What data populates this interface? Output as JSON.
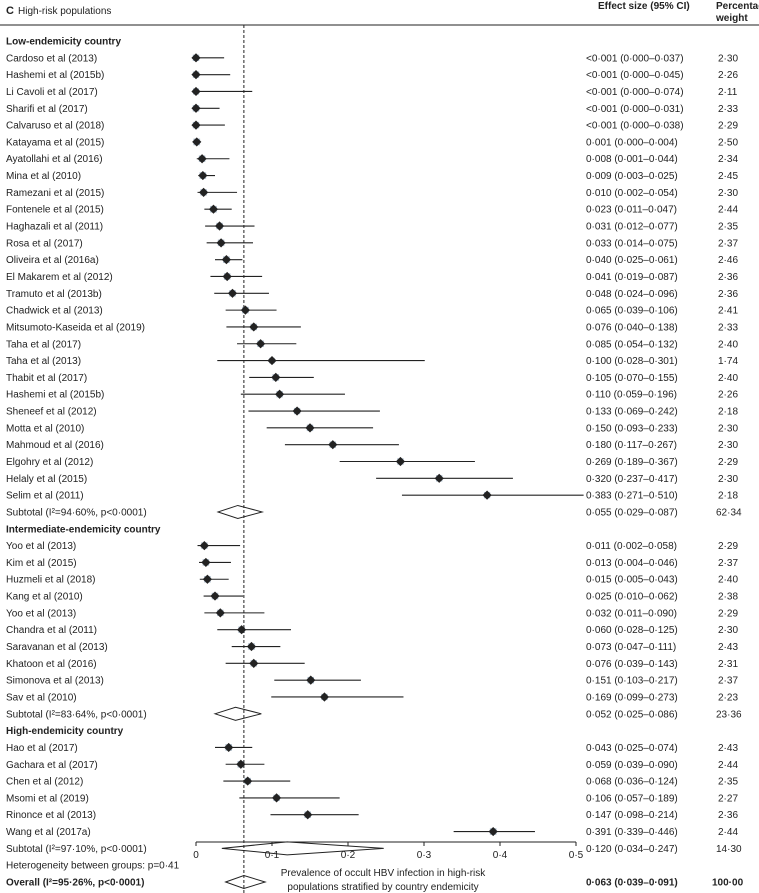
{
  "panel_letter": "C",
  "panel_title": "High-risk populations",
  "col_effect": "Effect size (95% CI)",
  "col_weight_1": "Percentage",
  "col_weight_2": "weight",
  "chart_data": {
    "type": "forest",
    "title": "High-risk populations",
    "xlabel": "Prevalence of occult HBV infection in high-risk populations stratified by country endemicity",
    "xlabel_line1": "Prevalence of occult HBV infection in high-risk",
    "xlabel_line2": "populations stratified by country endemicity",
    "xlim": [
      0,
      0.5
    ],
    "xticks": [
      0,
      0.1,
      0.2,
      0.3,
      0.4,
      0.5
    ],
    "xtick_labels": [
      "0",
      "0·1",
      "0·2",
      "0·3",
      "0·4",
      "0·5"
    ],
    "reference_line": 0.063,
    "marker_color": "#222222",
    "weight_box_color": "#a9b9c9",
    "groups": [
      {
        "name": "Low-endemicity country",
        "studies": [
          {
            "label": "Cardoso et al (2013)",
            "es": 0.0,
            "lo": 0.0,
            "hi": 0.037,
            "text": "<0·001 (0·000–0·037)",
            "weight": 2.3,
            "weight_text": "2·30"
          },
          {
            "label": "Hashemi et al (2015b)",
            "es": 0.0,
            "lo": 0.0,
            "hi": 0.045,
            "text": "<0·001 (0·000–0·045)",
            "weight": 2.26,
            "weight_text": "2·26"
          },
          {
            "label": "Li Cavoli et al (2017)",
            "es": 0.0,
            "lo": 0.0,
            "hi": 0.074,
            "text": "<0·001 (0·000–0·074)",
            "weight": 2.11,
            "weight_text": "2·11"
          },
          {
            "label": "Sharifi et al (2017)",
            "es": 0.0,
            "lo": 0.0,
            "hi": 0.031,
            "text": "<0·001 (0·000–0·031)",
            "weight": 2.33,
            "weight_text": "2·33"
          },
          {
            "label": "Calvaruso et al (2018)",
            "es": 0.0,
            "lo": 0.0,
            "hi": 0.038,
            "text": "<0·001 (0·000–0·038)",
            "weight": 2.29,
            "weight_text": "2·29"
          },
          {
            "label": "Katayama et al (2015)",
            "es": 0.001,
            "lo": 0.0,
            "hi": 0.004,
            "text": "0·001 (0·000–0·004)",
            "weight": 2.5,
            "weight_text": "2·50"
          },
          {
            "label": "Ayatollahi et al (2016)",
            "es": 0.008,
            "lo": 0.001,
            "hi": 0.044,
            "text": "0·008 (0·001–0·044)",
            "weight": 2.34,
            "weight_text": "2·34"
          },
          {
            "label": "Mina et al (2010)",
            "es": 0.009,
            "lo": 0.003,
            "hi": 0.025,
            "text": "0·009 (0·003–0·025)",
            "weight": 2.45,
            "weight_text": "2·45"
          },
          {
            "label": "Ramezani et al (2015)",
            "es": 0.01,
            "lo": 0.002,
            "hi": 0.054,
            "text": "0·010 (0·002–0·054)",
            "weight": 2.3,
            "weight_text": "2·30"
          },
          {
            "label": "Fontenele et al (2015)",
            "es": 0.023,
            "lo": 0.011,
            "hi": 0.047,
            "text": "0·023 (0·011–0·047)",
            "weight": 2.44,
            "weight_text": "2·44"
          },
          {
            "label": "Haghazali et al (2011)",
            "es": 0.031,
            "lo": 0.012,
            "hi": 0.077,
            "text": "0·031 (0·012–0·077)",
            "weight": 2.35,
            "weight_text": "2·35"
          },
          {
            "label": "Rosa et al (2017)",
            "es": 0.033,
            "lo": 0.014,
            "hi": 0.075,
            "text": "0·033 (0·014–0·075)",
            "weight": 2.37,
            "weight_text": "2·37"
          },
          {
            "label": "Oliveira et al (2016a)",
            "es": 0.04,
            "lo": 0.025,
            "hi": 0.061,
            "text": "0·040 (0·025–0·061)",
            "weight": 2.46,
            "weight_text": "2·46"
          },
          {
            "label": "El Makarem et al (2012)",
            "es": 0.041,
            "lo": 0.019,
            "hi": 0.087,
            "text": "0·041 (0·019–0·087)",
            "weight": 2.36,
            "weight_text": "2·36"
          },
          {
            "label": "Tramuto et al (2013b)",
            "es": 0.048,
            "lo": 0.024,
            "hi": 0.096,
            "text": "0·048 (0·024–0·096)",
            "weight": 2.36,
            "weight_text": "2·36"
          },
          {
            "label": "Chadwick et al (2013)",
            "es": 0.065,
            "lo": 0.039,
            "hi": 0.106,
            "text": "0·065 (0·039–0·106)",
            "weight": 2.41,
            "weight_text": "2·41"
          },
          {
            "label": "Mitsumoto-Kaseida et al (2019)",
            "es": 0.076,
            "lo": 0.04,
            "hi": 0.138,
            "text": "0·076 (0·040–0·138)",
            "weight": 2.33,
            "weight_text": "2·33"
          },
          {
            "label": "Taha et al (2017)",
            "es": 0.085,
            "lo": 0.054,
            "hi": 0.132,
            "text": "0·085 (0·054–0·132)",
            "weight": 2.4,
            "weight_text": "2·40"
          },
          {
            "label": "Taha et al (2013)",
            "es": 0.1,
            "lo": 0.028,
            "hi": 0.301,
            "text": "0·100 (0·028–0·301)",
            "weight": 1.74,
            "weight_text": "1·74"
          },
          {
            "label": "Thabit et al (2017)",
            "es": 0.105,
            "lo": 0.07,
            "hi": 0.155,
            "text": "0·105 (0·070–0·155)",
            "weight": 2.4,
            "weight_text": "2·40"
          },
          {
            "label": "Hashemi et al (2015b)",
            "es": 0.11,
            "lo": 0.059,
            "hi": 0.196,
            "text": "0·110 (0·059–0·196)",
            "weight": 2.26,
            "weight_text": "2·26"
          },
          {
            "label": "Sheneef et al (2012)",
            "es": 0.133,
            "lo": 0.069,
            "hi": 0.242,
            "text": "0·133 (0·069–0·242)",
            "weight": 2.18,
            "weight_text": "2·18"
          },
          {
            "label": "Motta et al (2010)",
            "es": 0.15,
            "lo": 0.093,
            "hi": 0.233,
            "text": "0·150 (0·093–0·233)",
            "weight": 2.3,
            "weight_text": "2·30"
          },
          {
            "label": "Mahmoud et al (2016)",
            "es": 0.18,
            "lo": 0.117,
            "hi": 0.267,
            "text": "0·180 (0·117–0·267)",
            "weight": 2.3,
            "weight_text": "2·30"
          },
          {
            "label": "Elgohry et al (2012)",
            "es": 0.269,
            "lo": 0.189,
            "hi": 0.367,
            "text": "0·269 (0·189–0·367)",
            "weight": 2.29,
            "weight_text": "2·29"
          },
          {
            "label": "Helaly et al (2015)",
            "es": 0.32,
            "lo": 0.237,
            "hi": 0.417,
            "text": "0·320 (0·237–0·417)",
            "weight": 2.3,
            "weight_text": "2·30"
          },
          {
            "label": "Selim et al (2011)",
            "es": 0.383,
            "lo": 0.271,
            "hi": 0.51,
            "text": "0·383 (0·271–0·510)",
            "weight": 2.18,
            "weight_text": "2·18"
          }
        ],
        "subtotal": {
          "label": "Subtotal (I²=94·60%, p<0·0001)",
          "es": 0.055,
          "lo": 0.029,
          "hi": 0.087,
          "text": "0·055 (0·029–0·087)",
          "weight": 62.34,
          "weight_text": "62·34"
        }
      },
      {
        "name": "Intermediate-endemicity country",
        "studies": [
          {
            "label": "Yoo et al (2013)",
            "es": 0.011,
            "lo": 0.002,
            "hi": 0.058,
            "text": "0·011 (0·002–0·058)",
            "weight": 2.29,
            "weight_text": "2·29"
          },
          {
            "label": "Kim et al (2015)",
            "es": 0.013,
            "lo": 0.004,
            "hi": 0.046,
            "text": "0·013 (0·004–0·046)",
            "weight": 2.37,
            "weight_text": "2·37"
          },
          {
            "label": "Huzmeli et al (2018)",
            "es": 0.015,
            "lo": 0.005,
            "hi": 0.043,
            "text": "0·015 (0·005–0·043)",
            "weight": 2.4,
            "weight_text": "2·40"
          },
          {
            "label": "Kang et al (2010)",
            "es": 0.025,
            "lo": 0.01,
            "hi": 0.062,
            "text": "0·025 (0·010–0·062)",
            "weight": 2.38,
            "weight_text": "2·38"
          },
          {
            "label": "Yoo et al (2013)",
            "es": 0.032,
            "lo": 0.011,
            "hi": 0.09,
            "text": "0·032 (0·011–0·090)",
            "weight": 2.29,
            "weight_text": "2·29"
          },
          {
            "label": "Chandra et al (2011)",
            "es": 0.06,
            "lo": 0.028,
            "hi": 0.125,
            "text": "0·060 (0·028–0·125)",
            "weight": 2.3,
            "weight_text": "2·30"
          },
          {
            "label": "Saravanan et al (2013)",
            "es": 0.073,
            "lo": 0.047,
            "hi": 0.111,
            "text": "0·073 (0·047–0·111)",
            "weight": 2.43,
            "weight_text": "2·43"
          },
          {
            "label": "Khatoon et al (2016)",
            "es": 0.076,
            "lo": 0.039,
            "hi": 0.143,
            "text": "0·076 (0·039–0·143)",
            "weight": 2.31,
            "weight_text": "2·31"
          },
          {
            "label": "Simonova et al (2013)",
            "es": 0.151,
            "lo": 0.103,
            "hi": 0.217,
            "text": "0·151 (0·103–0·217)",
            "weight": 2.37,
            "weight_text": "2·37"
          },
          {
            "label": "Sav et al (2010)",
            "es": 0.169,
            "lo": 0.099,
            "hi": 0.273,
            "text": "0·169 (0·099–0·273)",
            "weight": 2.23,
            "weight_text": "2·23"
          }
        ],
        "subtotal": {
          "label": "Subtotal (I²=83·64%, p<0·0001)",
          "es": 0.052,
          "lo": 0.025,
          "hi": 0.086,
          "text": "0·052 (0·025–0·086)",
          "weight": 23.36,
          "weight_text": "23·36"
        }
      },
      {
        "name": "High-endemicity country",
        "studies": [
          {
            "label": "Hao et al (2017)",
            "es": 0.043,
            "lo": 0.025,
            "hi": 0.074,
            "text": "0·043 (0·025–0·074)",
            "weight": 2.43,
            "weight_text": "2·43"
          },
          {
            "label": "Gachara et al (2017)",
            "es": 0.059,
            "lo": 0.039,
            "hi": 0.09,
            "text": "0·059 (0·039–0·090)",
            "weight": 2.44,
            "weight_text": "2·44"
          },
          {
            "label": "Chen et al (2012)",
            "es": 0.068,
            "lo": 0.036,
            "hi": 0.124,
            "text": "0·068 (0·036–0·124)",
            "weight": 2.35,
            "weight_text": "2·35"
          },
          {
            "label": "Msomi et al (2019)",
            "es": 0.106,
            "lo": 0.057,
            "hi": 0.189,
            "text": "0·106 (0·057–0·189)",
            "weight": 2.27,
            "weight_text": "2·27"
          },
          {
            "label": "Rinonce et al (2013)",
            "es": 0.147,
            "lo": 0.098,
            "hi": 0.214,
            "text": "0·147 (0·098–0·214)",
            "weight": 2.36,
            "weight_text": "2·36"
          },
          {
            "label": "Wang et al (2017a)",
            "es": 0.391,
            "lo": 0.339,
            "hi": 0.446,
            "text": "0·391 (0·339–0·446)",
            "weight": 2.44,
            "weight_text": "2·44"
          }
        ],
        "subtotal": {
          "label": "Subtotal (I²=97·10%, p<0·0001)",
          "es": 0.12,
          "lo": 0.034,
          "hi": 0.247,
          "text": "0·120 (0·034–0·247)",
          "weight": 14.3,
          "weight_text": "14·30"
        }
      }
    ],
    "heterogeneity": "Heterogeneity between groups: p=0·41",
    "overall": {
      "label": "Overall (I²=95·26%, p<0·0001)",
      "es": 0.063,
      "lo": 0.039,
      "hi": 0.091,
      "text": "0·063 (0·039–0·091)",
      "weight": 100.0,
      "weight_text": "100·00"
    }
  }
}
